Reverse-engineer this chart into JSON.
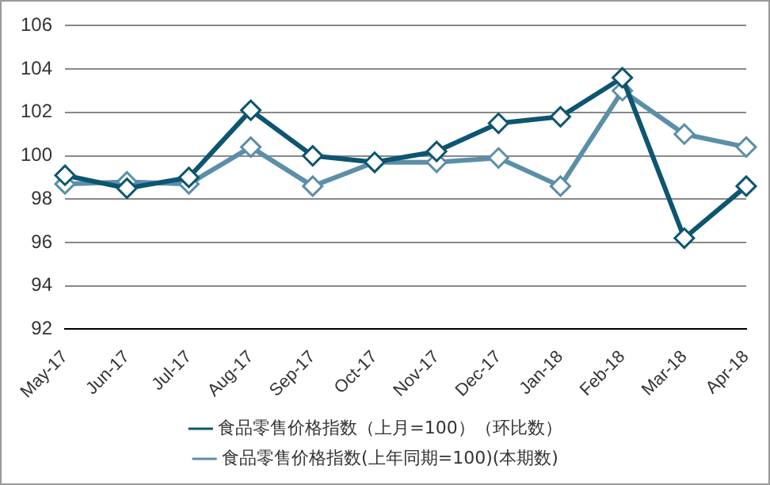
{
  "chart_data": {
    "type": "line",
    "categories": [
      "May-17",
      "Jun-17",
      "Jul-17",
      "Aug-17",
      "Sep-17",
      "Oct-17",
      "Nov-17",
      "Dec-17",
      "Jan-18",
      "Feb-18",
      "Mar-18",
      "Apr-18"
    ],
    "series": [
      {
        "name": "食品零售价格指数(上年同期=100)(本期数)",
        "color": "#5b8fa8",
        "values": [
          98.7,
          98.8,
          98.7,
          100.4,
          98.6,
          99.7,
          99.7,
          99.9,
          98.6,
          103.0,
          101.0,
          100.4
        ]
      },
      {
        "name": "食品零售价格指数（上月=100）（环比数）",
        "color": "#0d5570",
        "values": [
          99.1,
          98.5,
          99.0,
          102.1,
          100.0,
          99.7,
          100.2,
          101.5,
          101.8,
          103.6,
          96.2,
          98.6
        ]
      }
    ],
    "ylim": [
      92,
      106
    ],
    "yticks": [
      92,
      94,
      96,
      98,
      100,
      102,
      104,
      106
    ],
    "grid": "y",
    "legend": "bottom",
    "marker": "diamond",
    "line_style": "solid"
  }
}
